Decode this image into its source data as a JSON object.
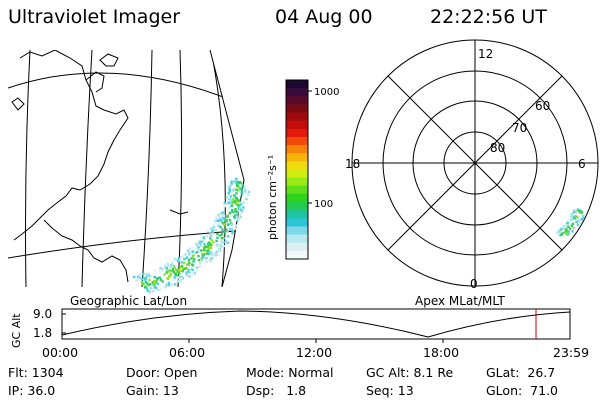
{
  "header": {
    "title": "Ultraviolet Imager",
    "date": "04 Aug 00",
    "time": "22:22:56 UT"
  },
  "colorbar": {
    "unit_label": "photon cm⁻²s⁻¹",
    "ticks": [
      "1000",
      "100"
    ],
    "colors": [
      "#1c0830",
      "#3a0a3a",
      "#5a0a2a",
      "#7a0a14",
      "#a00a0a",
      "#c40c0c",
      "#e21a0c",
      "#f24a0a",
      "#f6840a",
      "#f6b40a",
      "#f0dc0c",
      "#d2ee10",
      "#96ec14",
      "#5ede18",
      "#2ed41c",
      "#22cc50",
      "#1ec4a0",
      "#2ec4d8",
      "#7cd8ea",
      "#b8e8f0",
      "#dcf0f4",
      "#f2f8fa"
    ]
  },
  "geo_panel": {
    "caption": "Geographic Lat/Lon"
  },
  "polar_panel": {
    "caption": "Apex MLat/MLT",
    "mlt_labels": {
      "top": "12",
      "left": "18",
      "right": "6",
      "bottom": "0"
    },
    "lat_labels": [
      "60",
      "70",
      "80"
    ]
  },
  "orbit_panel": {
    "ylabel": "GC Alt",
    "y_ticks": [
      "9.0",
      "1.8"
    ],
    "x_ticks": [
      "00:00",
      "06:00",
      "12:00",
      "18:00",
      "23:59"
    ]
  },
  "status": {
    "flt": "Flt: 1304",
    "ip": "IP: 36.0",
    "door": "Door: Open",
    "gain": "Gain: 13",
    "mode": "Mode: Normal",
    "dsp": "Dsp:   1.8",
    "gc_alt": "GC Alt: 8.1 Re",
    "seq": "Seq: 13",
    "glat": "GLat:  26.7",
    "glon": "GLon:  71.0"
  }
}
